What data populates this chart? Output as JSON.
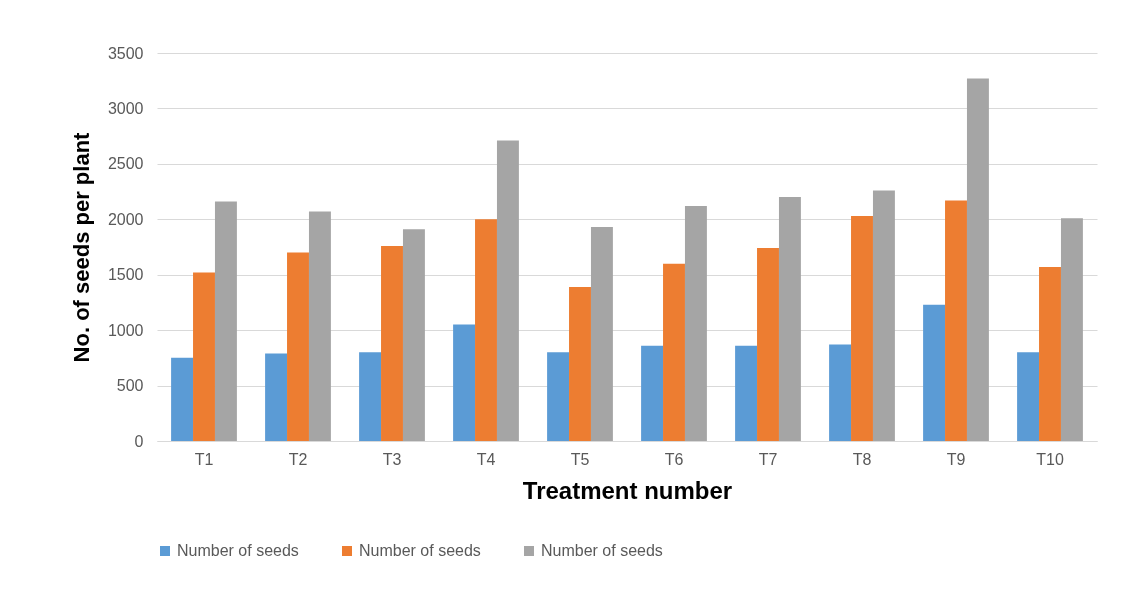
{
  "chart_data": {
    "type": "bar",
    "xlabel": "Treatment number",
    "ylabel": "No. of seeds per plant",
    "categories": [
      "T1",
      "T2",
      "T3",
      "T4",
      "T5",
      "T6",
      "T7",
      "T8",
      "T9",
      "T10"
    ],
    "series": [
      {
        "name": "Number of seeds",
        "color": "#5b9bd5",
        "values": [
          750,
          790,
          800,
          1050,
          800,
          860,
          860,
          870,
          1230,
          800
        ]
      },
      {
        "name": "Number of seeds",
        "color": "#ed7d31",
        "values": [
          1520,
          1700,
          1760,
          2000,
          1390,
          1600,
          1740,
          2030,
          2170,
          1570
        ]
      },
      {
        "name": "Number of seeds",
        "color": "#a5a5a5",
        "values": [
          2160,
          2070,
          1910,
          2710,
          1930,
          2120,
          2200,
          2260,
          3270,
          2010
        ]
      }
    ],
    "ylim": [
      0,
      3500
    ],
    "yticks": [
      0,
      500,
      1000,
      1500,
      2000,
      2500,
      3000,
      3500
    ],
    "grid": "y",
    "legend": "bottom"
  }
}
